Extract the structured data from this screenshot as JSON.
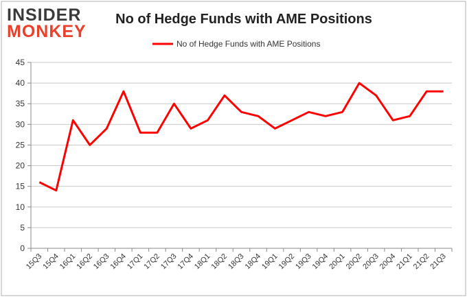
{
  "logo": {
    "line1": "INSIDER",
    "line2": "MONKEY"
  },
  "colors": {
    "series": "#ff0000",
    "axis": "#888888",
    "grid": "#c8c8c8",
    "frame": "#b0b0b0",
    "text": "#333333",
    "logo_dark": "#3a3a3a",
    "logo_red": "#e8402a"
  },
  "chart_data": {
    "type": "line",
    "title": "No of Hedge Funds with AME Positions",
    "xlabel": "",
    "ylabel": "",
    "ylim": [
      0,
      45
    ],
    "yticks": [
      0,
      5,
      10,
      15,
      20,
      25,
      30,
      35,
      40,
      45
    ],
    "grid": true,
    "legend_position": "top-center",
    "categories": [
      "15Q3",
      "15Q4",
      "16Q1",
      "16Q2",
      "16Q3",
      "16Q4",
      "17Q1",
      "17Q2",
      "17Q3",
      "17Q4",
      "18Q1",
      "18Q2",
      "18Q3",
      "18Q4",
      "19Q1",
      "19Q2",
      "19Q3",
      "19Q4",
      "20Q1",
      "20Q2",
      "20Q3",
      "20Q4",
      "21Q1",
      "21Q2",
      "21Q3"
    ],
    "series": [
      {
        "name": "No of Hedge Funds with AME Positions",
        "values": [
          16,
          14,
          31,
          25,
          29,
          38,
          28,
          28,
          35,
          29,
          31,
          37,
          33,
          32,
          29,
          31,
          33,
          32,
          33,
          40,
          37,
          31,
          32,
          38,
          38
        ]
      }
    ]
  }
}
